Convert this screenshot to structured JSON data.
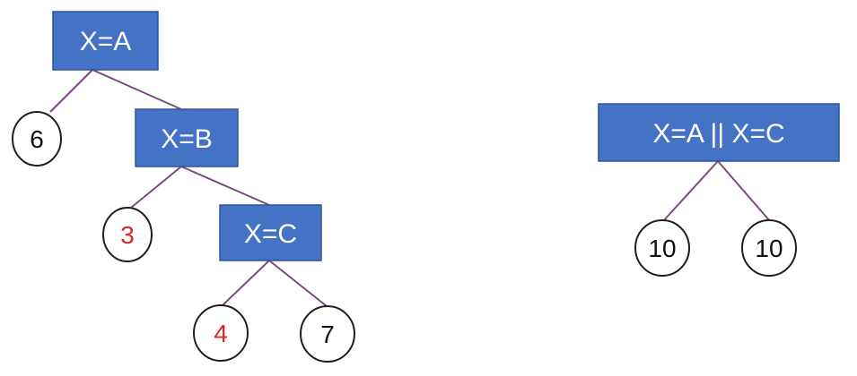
{
  "colors": {
    "node_fill": "#4472c4",
    "node_text": "#ffffff",
    "edge": "#7a4a7e",
    "leaf_border": "#1f1f1f",
    "leaf_text_default": "#111111",
    "leaf_text_highlight": "#d62828"
  },
  "left_tree": {
    "nodes": {
      "xa": "X=A",
      "xb": "X=B",
      "xc": "X=C"
    },
    "leaves": {
      "l6": "6",
      "l3": "3",
      "l4": "4",
      "l7": "7"
    },
    "highlighted_leaves": [
      "3",
      "4"
    ]
  },
  "right_tree": {
    "nodes": {
      "root": "X=A || X=C"
    },
    "leaves": {
      "left": "10",
      "right": "10"
    }
  }
}
